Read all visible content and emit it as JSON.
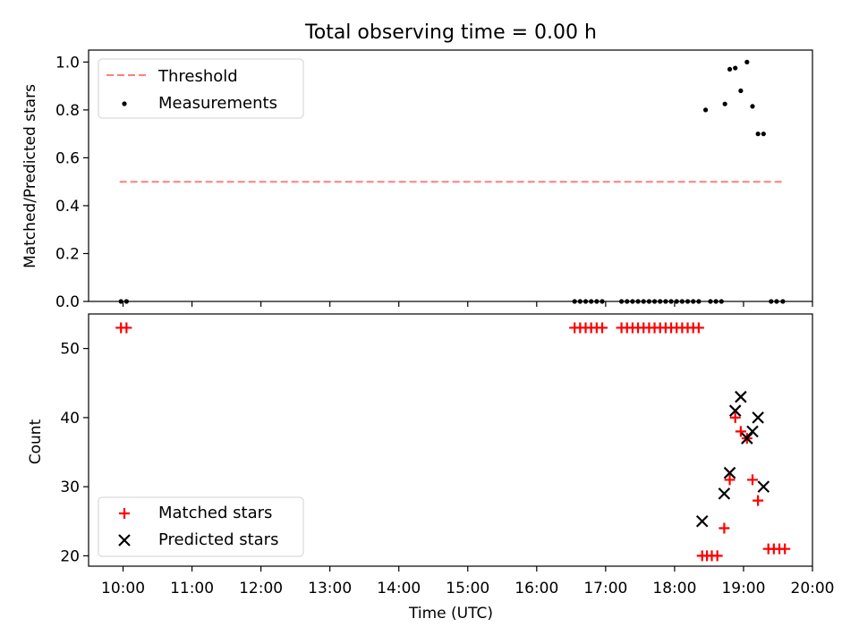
{
  "chart_data": [
    {
      "panel": "top",
      "type": "scatter",
      "title": "Total observing time = 0.00 h",
      "xlabel": "",
      "ylabel": "Matched/Predicted stars",
      "xlim": [
        9.5,
        20.0
      ],
      "ylim": [
        0.0,
        1.05
      ],
      "yticks": [
        0.0,
        0.2,
        0.4,
        0.6,
        0.8,
        1.0
      ],
      "ytick_labels": [
        "0.0",
        "0.2",
        "0.4",
        "0.6",
        "0.8",
        "1.0"
      ],
      "grid": false,
      "legend": {
        "position": "top-left",
        "entries": [
          "Threshold",
          "Measurements"
        ]
      },
      "threshold": {
        "name": "Threshold",
        "color": "#ff7f7f",
        "y": 0.5,
        "x": [
          9.95,
          19.6
        ]
      },
      "series": [
        {
          "name": "Measurements",
          "color": "#000000",
          "x": [
            9.97,
            10.05,
            16.55,
            16.63,
            16.71,
            16.79,
            16.87,
            16.95,
            17.23,
            17.31,
            17.39,
            17.47,
            17.55,
            17.63,
            17.71,
            17.79,
            17.87,
            17.95,
            18.03,
            18.11,
            18.19,
            18.27,
            18.35,
            18.45,
            18.52,
            18.6,
            18.68,
            18.73,
            18.8,
            18.88,
            18.96,
            19.05,
            19.13,
            19.21,
            19.29,
            19.4,
            19.48,
            19.57
          ],
          "y": [
            0,
            0,
            0,
            0,
            0,
            0,
            0,
            0,
            0,
            0,
            0,
            0,
            0,
            0,
            0,
            0,
            0,
            0,
            0,
            0,
            0,
            0,
            0,
            0.8,
            0,
            0,
            0,
            0.825,
            0.97,
            0.975,
            0.88,
            1.0,
            0.815,
            0.7,
            0.7,
            0,
            0,
            0
          ]
        }
      ]
    },
    {
      "panel": "bottom",
      "type": "scatter",
      "title": "",
      "xlabel": "Time (UTC)",
      "ylabel": "Count",
      "xlim": [
        9.5,
        20.0
      ],
      "ylim": [
        18.5,
        55.0
      ],
      "xticks": [
        10,
        11,
        12,
        13,
        14,
        15,
        16,
        17,
        18,
        19,
        20
      ],
      "xtick_labels": [
        "10:00",
        "11:00",
        "12:00",
        "13:00",
        "14:00",
        "15:00",
        "16:00",
        "17:00",
        "18:00",
        "19:00",
        "20:00"
      ],
      "yticks": [
        20,
        30,
        40,
        50
      ],
      "ytick_labels": [
        "20",
        "30",
        "40",
        "50"
      ],
      "grid": false,
      "legend": {
        "position": "bottom-left",
        "entries": [
          "Matched stars",
          "Predicted stars"
        ]
      },
      "series": [
        {
          "name": "Matched stars",
          "color": "#ff0000",
          "marker": "plus",
          "x": [
            9.97,
            10.05,
            16.55,
            16.63,
            16.71,
            16.79,
            16.87,
            16.95,
            17.23,
            17.31,
            17.39,
            17.47,
            17.55,
            17.63,
            17.71,
            17.79,
            17.87,
            17.95,
            18.03,
            18.11,
            18.19,
            18.27,
            18.35,
            18.4,
            18.47,
            18.54,
            18.62,
            18.72,
            18.8,
            18.88,
            18.96,
            19.05,
            19.13,
            19.21,
            19.36,
            19.44,
            19.52,
            19.6
          ],
          "y": [
            53,
            53,
            53,
            53,
            53,
            53,
            53,
            53,
            53,
            53,
            53,
            53,
            53,
            53,
            53,
            53,
            53,
            53,
            53,
            53,
            53,
            53,
            53,
            20,
            20,
            20,
            20,
            24,
            31,
            40,
            38,
            37,
            31,
            28,
            21,
            21,
            21,
            21
          ]
        },
        {
          "name": "Predicted stars",
          "color": "#000000",
          "marker": "x",
          "x": [
            18.4,
            18.72,
            18.8,
            18.88,
            18.96,
            19.05,
            19.13,
            19.21,
            19.29
          ],
          "y": [
            25,
            29,
            32,
            41,
            43,
            37,
            38,
            40,
            30
          ]
        }
      ]
    }
  ]
}
